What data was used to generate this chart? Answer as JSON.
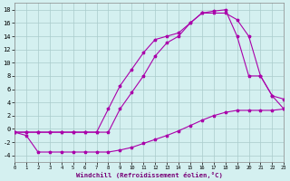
{
  "background_color": "#d4f0f0",
  "line_color": "#aa00aa",
  "grid_color": "#aacccc",
  "xlim": [
    0,
    23
  ],
  "ylim": [
    -5,
    19
  ],
  "xtick_vals": [
    0,
    1,
    2,
    3,
    4,
    5,
    6,
    7,
    8,
    9,
    10,
    11,
    12,
    13,
    14,
    15,
    16,
    17,
    18,
    19,
    20,
    21,
    22,
    23
  ],
  "ytick_vals": [
    -4,
    -2,
    0,
    2,
    4,
    6,
    8,
    10,
    12,
    14,
    16,
    18
  ],
  "xlabel": "Windchill (Refroidissement éolien,°C)",
  "line1_x": [
    0,
    1,
    2,
    3,
    4,
    5,
    6,
    7,
    8,
    9,
    10,
    11,
    12,
    13,
    14,
    15,
    16,
    17,
    18,
    19,
    20,
    21,
    22,
    23
  ],
  "line1_y": [
    -0.5,
    -1.0,
    -3.5,
    -3.5,
    -3.5,
    -3.5,
    -3.5,
    -3.5,
    -3.5,
    -3.2,
    -2.8,
    -2.2,
    -1.6,
    -1.0,
    -0.3,
    0.5,
    1.3,
    2.0,
    2.5,
    2.8,
    2.8,
    2.8,
    2.8,
    3.0
  ],
  "line2_x": [
    0,
    1,
    2,
    3,
    4,
    5,
    6,
    7,
    8,
    9,
    10,
    11,
    12,
    13,
    14,
    15,
    16,
    17,
    18,
    19,
    20,
    21,
    22,
    23
  ],
  "line2_y": [
    -0.5,
    -0.5,
    -0.5,
    -0.5,
    -0.5,
    -0.5,
    -0.5,
    -0.5,
    3.0,
    6.5,
    9.0,
    11.5,
    13.5,
    14.0,
    14.5,
    16.0,
    17.5,
    17.8,
    18.0,
    14.0,
    8.0,
    8.0,
    5.0,
    4.5
  ],
  "line3_x": [
    0,
    1,
    2,
    3,
    4,
    5,
    6,
    7,
    8,
    9,
    10,
    11,
    12,
    13,
    14,
    15,
    16,
    17,
    18,
    19,
    20,
    21,
    22,
    23
  ],
  "line3_y": [
    -0.5,
    -0.5,
    -0.5,
    -0.5,
    -0.5,
    -0.5,
    -0.5,
    -0.5,
    -0.5,
    3.0,
    5.5,
    8.0,
    11.0,
    13.0,
    14.0,
    16.0,
    17.5,
    17.5,
    17.5,
    16.5,
    14.0,
    8.0,
    5.0,
    3.0
  ]
}
